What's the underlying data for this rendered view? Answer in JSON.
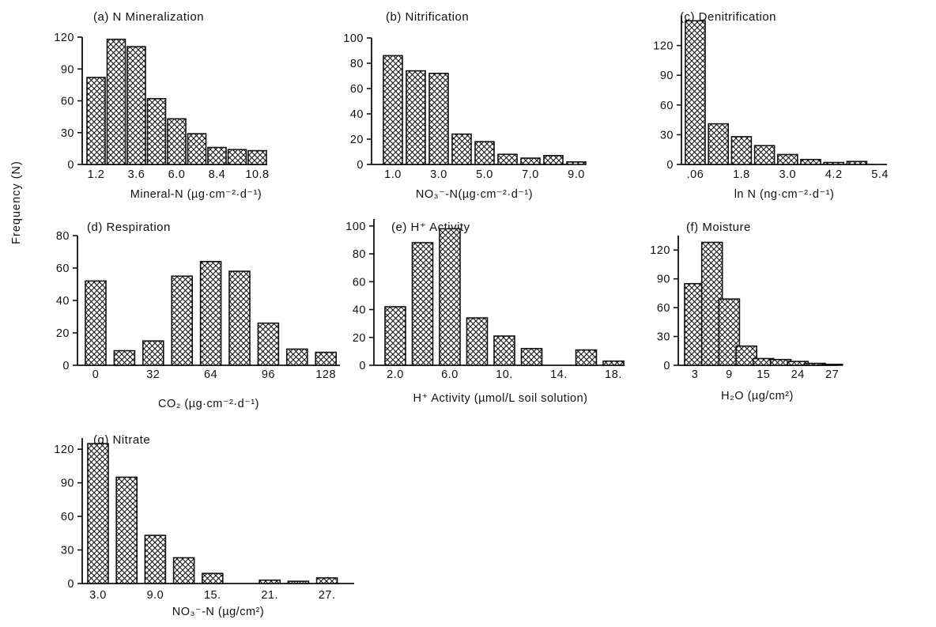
{
  "figure": {
    "ylabel": "Frequency (N)"
  },
  "chart_data": [
    {
      "type": "bar",
      "title": "(a) N Mineralization",
      "xlabel": "Mineral-N (µg·cm⁻²·d⁻¹)",
      "ylabel": "Frequency (N)",
      "ylim": [
        0,
        120
      ],
      "yticks": [
        "0",
        "30",
        "60",
        "90",
        "120"
      ],
      "xtick_labels": [
        "1.2",
        "3.6",
        "6.0",
        "8.4",
        "10.8"
      ],
      "xtick_positions": [
        0,
        2,
        4,
        6,
        8
      ],
      "values": [
        82,
        118,
        111,
        62,
        43,
        29,
        16,
        14,
        13
      ]
    },
    {
      "type": "bar",
      "title": "(b) Nitrification",
      "xlabel": "NO₃⁻-N(µg·cm⁻²·d⁻¹)",
      "ylabel": "Frequency (N)",
      "ylim": [
        0,
        100
      ],
      "yticks": [
        "0",
        "20",
        "40",
        "60",
        "80",
        "100"
      ],
      "xtick_labels": [
        "1.0",
        "3.0",
        "5.0",
        "7.0",
        "9.0"
      ],
      "xtick_positions": [
        0,
        2,
        4,
        6,
        8
      ],
      "values": [
        86,
        74,
        72,
        24,
        18,
        8,
        5,
        7,
        2
      ]
    },
    {
      "type": "bar",
      "title": "(c) Denitrification",
      "xlabel": "ln  N (ng·cm⁻²·d⁻¹)",
      "ylabel": "Frequency (N)",
      "ylim": [
        0,
        150
      ],
      "yticks": [
        "0",
        "30",
        "60",
        "90",
        "120"
      ],
      "xtick_labels": [
        ".06",
        "1.8",
        "3.0",
        "4.2",
        "5.4"
      ],
      "xtick_positions": [
        0,
        2,
        4,
        6,
        8
      ],
      "values": [
        145,
        41,
        28,
        19,
        10,
        5,
        2,
        3,
        0
      ]
    },
    {
      "type": "bar",
      "title": "(d) Respiration",
      "xlabel": "CO₂ (µg·cm⁻²·d⁻¹)",
      "ylabel": "Frequency (N)",
      "ylim": [
        0,
        80
      ],
      "yticks": [
        "0",
        "20",
        "40",
        "60",
        "80"
      ],
      "xtick_labels": [
        "0",
        "32",
        "64",
        "96",
        "128"
      ],
      "xtick_positions": [
        0,
        2,
        4,
        6,
        8
      ],
      "values": [
        52,
        9,
        15,
        55,
        64,
        58,
        26,
        10,
        8
      ]
    },
    {
      "type": "bar",
      "title": "(e) H⁺ Activity",
      "xlabel": "H⁺ Activity (µmol/L soil solution)",
      "ylabel": "Frequency (N)",
      "ylim": [
        0,
        105
      ],
      "yticks": [
        "0",
        "20",
        "40",
        "60",
        "80",
        "100"
      ],
      "xtick_labels": [
        "2.0",
        "6.0",
        "10.",
        "14.",
        "18."
      ],
      "xtick_positions": [
        0,
        2,
        4,
        6,
        8
      ],
      "values": [
        42,
        88,
        98,
        34,
        21,
        12,
        0,
        11,
        3
      ]
    },
    {
      "type": "bar",
      "title": "(f) Moisture",
      "xlabel": "H₂O (µg/cm²)",
      "ylabel": "Frequency (N)",
      "ylim": [
        0,
        135
      ],
      "yticks": [
        "0",
        "30",
        "60",
        "90",
        "120"
      ],
      "xtick_labels": [
        "3",
        "9",
        "15",
        "24",
        "27"
      ],
      "xtick_positions": [
        0,
        2,
        4,
        6,
        8
      ],
      "values": [
        85,
        128,
        69,
        20,
        7,
        6,
        4,
        2,
        1
      ]
    },
    {
      "type": "bar",
      "title": "(g) Nitrate",
      "xlabel": "NO₃⁻-N (µg/cm²)",
      "ylabel": "Frequency (N)",
      "ylim": [
        0,
        130
      ],
      "yticks": [
        "0",
        "30",
        "60",
        "90",
        "120"
      ],
      "xtick_labels": [
        "3.0",
        "9.0",
        "15.",
        "21.",
        "27."
      ],
      "xtick_positions": [
        0,
        2,
        4,
        6,
        8
      ],
      "values": [
        125,
        95,
        43,
        23,
        9,
        0,
        3,
        2,
        5
      ]
    }
  ]
}
